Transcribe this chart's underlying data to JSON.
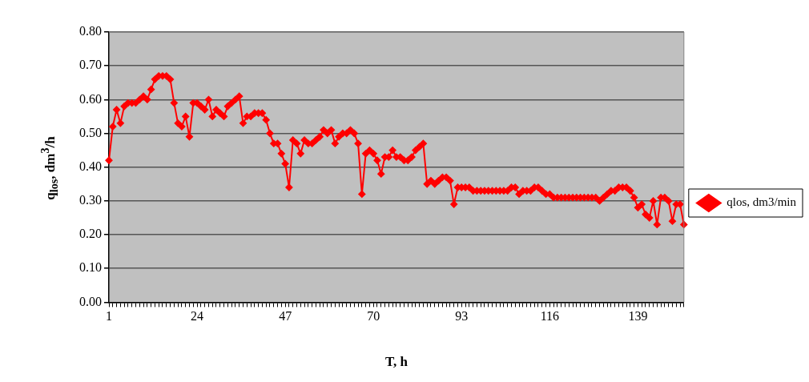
{
  "chart_data": {
    "type": "line",
    "xlabel": "T, h",
    "ylabel": "q$_{los}$, dm$^{3}$/h",
    "categories": [
      "1",
      null,
      null,
      null,
      null,
      null,
      null,
      null,
      null,
      null,
      null,
      null,
      null,
      null,
      null,
      null,
      null,
      null,
      null,
      null,
      null,
      null,
      null,
      "24",
      null,
      null,
      null,
      null,
      null,
      null,
      null,
      null,
      null,
      null,
      null,
      null,
      null,
      null,
      null,
      null,
      null,
      null,
      null,
      null,
      null,
      null,
      "47",
      null,
      null,
      null,
      null,
      null,
      null,
      null,
      null,
      null,
      null,
      null,
      null,
      null,
      null,
      null,
      null,
      null,
      null,
      null,
      null,
      null,
      null,
      "70",
      null,
      null,
      null,
      null,
      null,
      null,
      null,
      null,
      null,
      null,
      null,
      null,
      null,
      null,
      null,
      null,
      null,
      null,
      null,
      null,
      null,
      null,
      "93",
      null,
      null,
      null,
      null,
      null,
      null,
      null,
      null,
      null,
      null,
      null,
      null,
      null,
      null,
      null,
      null,
      null,
      null,
      null,
      null,
      null,
      null,
      "116",
      null,
      null,
      null,
      null,
      null,
      null,
      null,
      null,
      null,
      null,
      null,
      null,
      null,
      null,
      null,
      null,
      null,
      null,
      null,
      null,
      null,
      null,
      "139",
      null,
      null,
      null,
      null,
      null,
      null,
      null,
      null,
      null,
      null,
      null,
      null
    ],
    "series": [
      {
        "name": "qlos, dm3/min",
        "color": "#ff0000",
        "values": [
          0.42,
          0.52,
          0.57,
          0.53,
          0.58,
          0.59,
          0.59,
          0.59,
          0.6,
          0.61,
          0.6,
          0.63,
          0.66,
          0.67,
          0.67,
          0.67,
          0.66,
          0.59,
          0.53,
          0.52,
          0.55,
          0.49,
          0.59,
          0.59,
          0.58,
          0.57,
          0.6,
          0.55,
          0.57,
          0.56,
          0.55,
          0.58,
          0.59,
          0.6,
          0.61,
          0.53,
          0.55,
          0.55,
          0.56,
          0.56,
          0.56,
          0.54,
          0.5,
          0.47,
          0.47,
          0.44,
          0.41,
          0.34,
          0.48,
          0.47,
          0.44,
          0.48,
          0.47,
          0.47,
          0.48,
          0.49,
          0.51,
          0.5,
          0.51,
          0.47,
          0.49,
          0.5,
          0.5,
          0.51,
          0.5,
          0.47,
          0.32,
          0.44,
          0.45,
          0.44,
          0.42,
          0.38,
          0.43,
          0.43,
          0.45,
          0.43,
          0.43,
          0.42,
          0.42,
          0.43,
          0.45,
          0.46,
          0.47,
          0.35,
          0.36,
          0.35,
          0.36,
          0.37,
          0.37,
          0.36,
          0.29,
          0.34,
          0.34,
          0.34,
          0.34,
          0.33,
          0.33,
          0.33,
          0.33,
          0.33,
          0.33,
          0.33,
          0.33,
          0.33,
          0.33,
          0.34,
          0.34,
          0.32,
          0.33,
          0.33,
          0.33,
          0.34,
          0.34,
          0.33,
          0.32,
          0.32,
          0.31,
          0.31,
          0.31,
          0.31,
          0.31,
          0.31,
          0.31,
          0.31,
          0.31,
          0.31,
          0.31,
          0.31,
          0.3,
          0.31,
          0.32,
          0.33,
          0.33,
          0.34,
          0.34,
          0.34,
          0.33,
          0.31,
          0.28,
          0.29,
          0.26,
          0.25,
          0.3,
          0.23,
          0.31,
          0.31,
          0.3,
          0.24,
          0.29,
          0.29,
          0.23
        ]
      }
    ],
    "ylim": [
      0,
      0.8
    ],
    "yticks": [
      {
        "value": 0,
        "label": "0.00"
      },
      {
        "value": 0.1,
        "label": "0.10"
      },
      {
        "value": 0.2,
        "label": "0.20"
      },
      {
        "value": 0.3,
        "label": "0.30"
      },
      {
        "value": 0.4,
        "label": "0.40"
      },
      {
        "value": 0.5,
        "label": "0.50"
      },
      {
        "value": 0.6,
        "label": "0.60"
      },
      {
        "value": 0.7,
        "label": "0.70"
      },
      {
        "value": 0.8,
        "label": "0.80"
      }
    ],
    "grid": "y",
    "legend": "right",
    "marker": "diamond",
    "line_style": "solid"
  }
}
